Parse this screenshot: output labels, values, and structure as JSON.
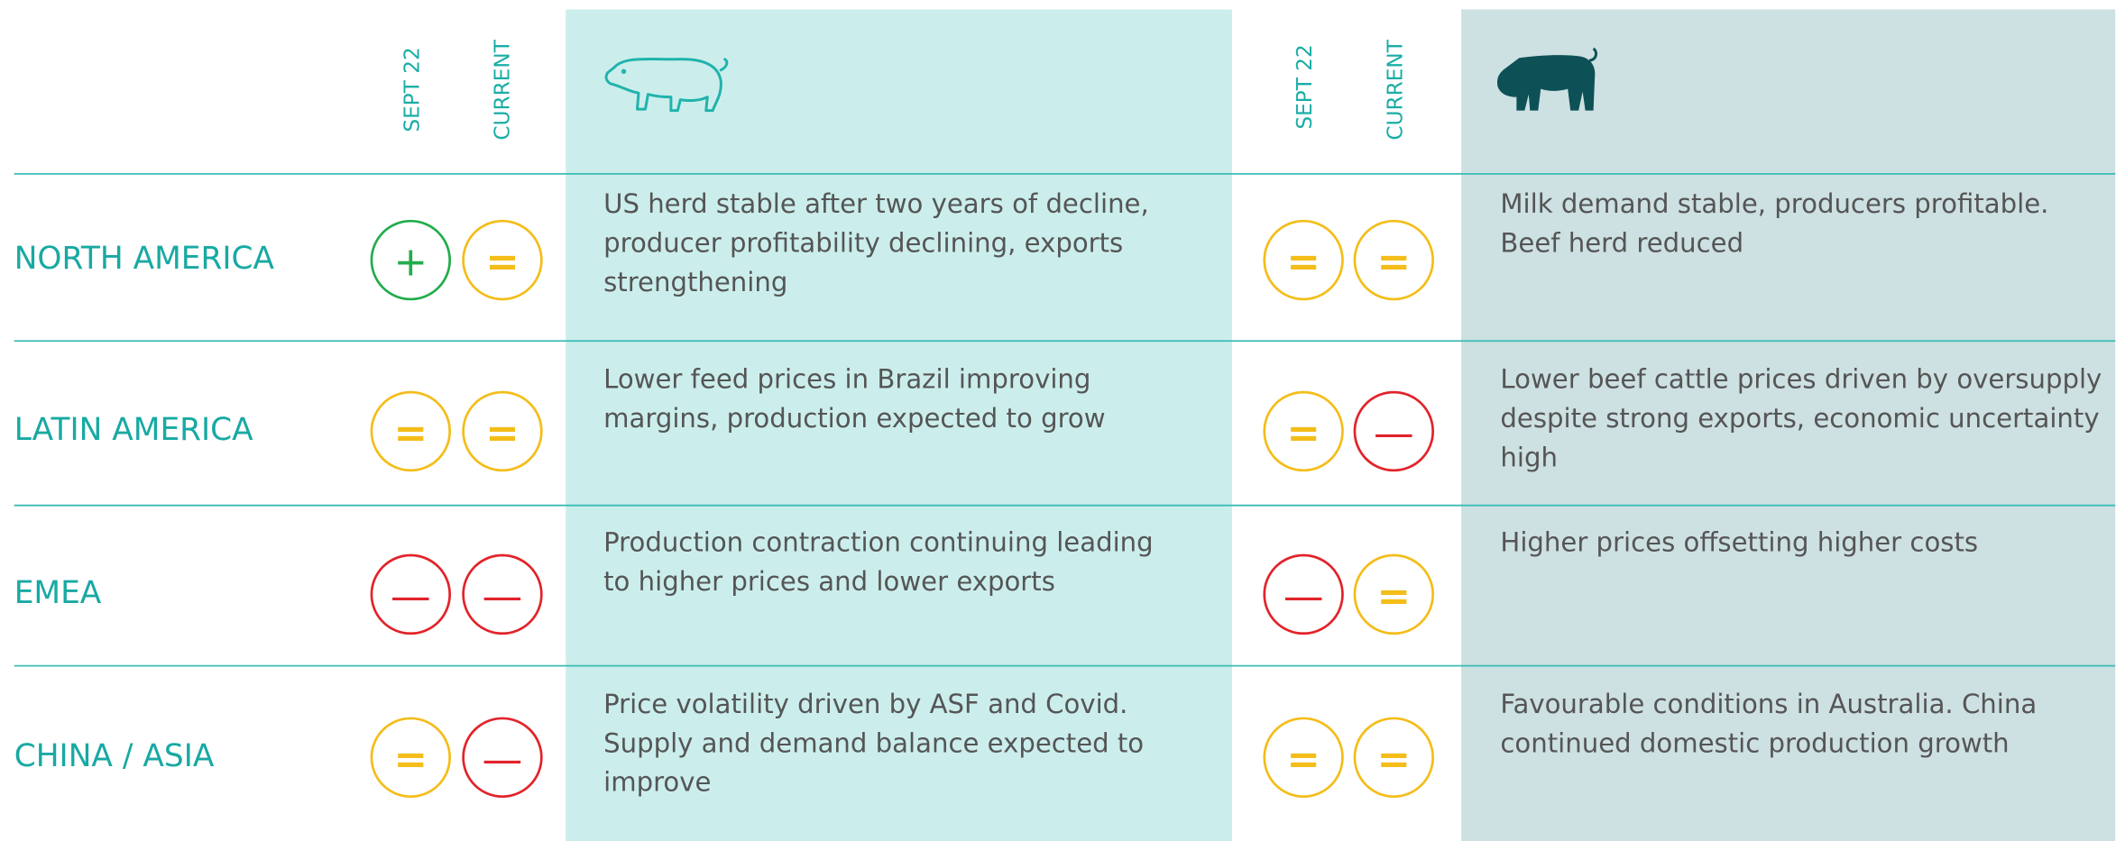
{
  "pork_header": {
    "sept22": "SEPT 22",
    "current": "CURRENT"
  },
  "dairy_header": {
    "sept22": "SEPT 22",
    "current": "CURRENT"
  },
  "rows": [
    {
      "region": "NORTH AMERICA",
      "pork": {
        "sept22": {
          "symbol": "+",
          "color": "#22ac4c"
        },
        "current": {
          "symbol": "=",
          "color": "#f4bd19"
        },
        "text": [
          "US herd stable after two years of decline,",
          "producer profitability declining, exports",
          "strengthening"
        ]
      },
      "dairy": {
        "sept22": {
          "symbol": "=",
          "color": "#f4bd19"
        },
        "current": {
          "symbol": "=",
          "color": "#f4bd19"
        },
        "text": [
          "Milk demand stable, producers profitable.",
          "Beef herd reduced"
        ]
      }
    },
    {
      "region": "LATIN AMERICA",
      "pork": {
        "sept22": {
          "symbol": "=",
          "color": "#f4bd19"
        },
        "current": {
          "symbol": "=",
          "color": "#f4bd19"
        },
        "text": [
          "Lower feed prices in Brazil improving",
          "margins, production expected to grow"
        ]
      },
      "dairy": {
        "sept22": {
          "symbol": "=",
          "color": "#f4bd19"
        },
        "current": {
          "symbol": "—",
          "color": "#e2232a"
        },
        "text": [
          "Lower beef cattle prices driven by oversupply",
          "despite strong exports, economic uncertainty",
          "high"
        ]
      }
    },
    {
      "region": "EMEA",
      "pork": {
        "sept22": {
          "symbol": "—",
          "color": "#e2232a"
        },
        "current": {
          "symbol": "—",
          "color": "#e2232a"
        },
        "text": [
          "Production contraction continuing leading",
          "to higher prices and lower exports"
        ]
      },
      "dairy": {
        "sept22": {
          "symbol": "—",
          "color": "#e2232a"
        },
        "current": {
          "symbol": "=",
          "color": "#f4bd19"
        },
        "text": [
          "Higher prices offsetting higher costs"
        ]
      }
    },
    {
      "region": "CHINA / ASIA",
      "pork": {
        "sept22": {
          "symbol": "=",
          "color": "#f4bd19"
        },
        "current": {
          "symbol": "—",
          "color": "#e2232a"
        },
        "text": [
          "Price volatility driven by ASF and Covid.",
          "Supply and demand balance expected to",
          "improve"
        ]
      },
      "dairy": {
        "sept22": {
          "symbol": "=",
          "color": "#f4bd19"
        },
        "current": {
          "symbol": "=",
          "color": "#f4bd19"
        },
        "text": [
          "Favourable conditions in Australia. China",
          "continued domestic production growth"
        ]
      }
    }
  ]
}
